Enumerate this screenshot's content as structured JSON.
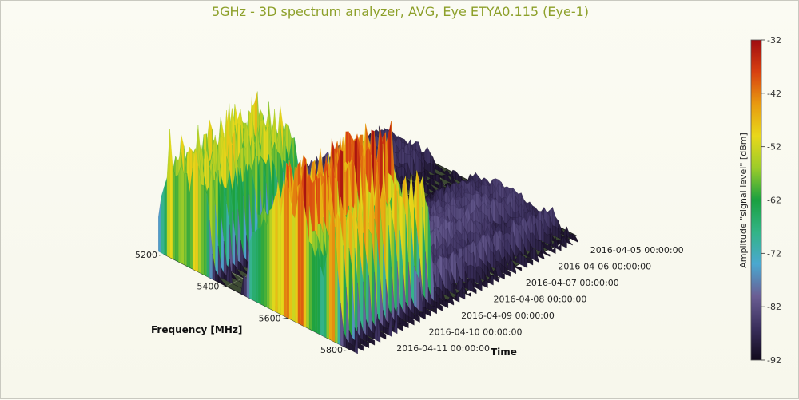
{
  "chart_data": {
    "type": "surface3d",
    "title": "5GHz - 3D spectrum analyzer, AVG, Eye ETYA0.115 (Eye-1)",
    "frequency_axis": {
      "label": "Frequency [MHz]",
      "ticks": [
        "5200",
        "5400",
        "5600",
        "5800"
      ],
      "range": [
        5200,
        5800
      ]
    },
    "time_axis": {
      "label": "Time",
      "ticks": [
        "2016-04-05 00:00:00",
        "2016-04-06 00:00:00",
        "2016-04-07 00:00:00",
        "2016-04-08 00:00:00",
        "2016-04-09 00:00:00",
        "2016-04-10 00:00:00",
        "2016-04-11 00:00:00"
      ]
    },
    "colorbar": {
      "label": "Amplitude \"signal level\" [dBm]",
      "ticks": [
        "-32",
        "-42",
        "-52",
        "-62",
        "-72",
        "-82",
        "-92"
      ],
      "range": [
        -92,
        -32
      ],
      "colors": [
        "#120a1c",
        "#3a2f5c",
        "#6a5e94",
        "#4aa8d0",
        "#32b486",
        "#1aa040",
        "#9ccc2a",
        "#e8d81a",
        "#e89a10",
        "#d84010",
        "#a00c10"
      ]
    },
    "front_profile_dbm": [
      {
        "mhz": 5180,
        "dbm": -77
      },
      {
        "mhz": 5200,
        "dbm": -64
      },
      {
        "mhz": 5220,
        "dbm": -50
      },
      {
        "mhz": 5240,
        "dbm": -62
      },
      {
        "mhz": 5260,
        "dbm": -52
      },
      {
        "mhz": 5280,
        "dbm": -66
      },
      {
        "mhz": 5300,
        "dbm": -50
      },
      {
        "mhz": 5320,
        "dbm": -62
      },
      {
        "mhz": 5340,
        "dbm": -60
      },
      {
        "mhz": 5360,
        "dbm": -88
      },
      {
        "mhz": 5400,
        "dbm": -92
      },
      {
        "mhz": 5460,
        "dbm": -92
      },
      {
        "mhz": 5480,
        "dbm": -66
      },
      {
        "mhz": 5500,
        "dbm": -60
      },
      {
        "mhz": 5520,
        "dbm": -57
      },
      {
        "mhz": 5540,
        "dbm": -56
      },
      {
        "mhz": 5560,
        "dbm": -42
      },
      {
        "mhz": 5580,
        "dbm": -52
      },
      {
        "mhz": 5600,
        "dbm": -40
      },
      {
        "mhz": 5620,
        "dbm": -48
      },
      {
        "mhz": 5640,
        "dbm": -34
      },
      {
        "mhz": 5660,
        "dbm": -55
      },
      {
        "mhz": 5680,
        "dbm": -60
      },
      {
        "mhz": 5700,
        "dbm": -64
      },
      {
        "mhz": 5720,
        "dbm": -68
      },
      {
        "mhz": 5740,
        "dbm": -42
      },
      {
        "mhz": 5760,
        "dbm": -60
      },
      {
        "mhz": 5780,
        "dbm": -88
      },
      {
        "mhz": 5800,
        "dbm": -90
      },
      {
        "mhz": 5825,
        "dbm": -90
      }
    ]
  }
}
